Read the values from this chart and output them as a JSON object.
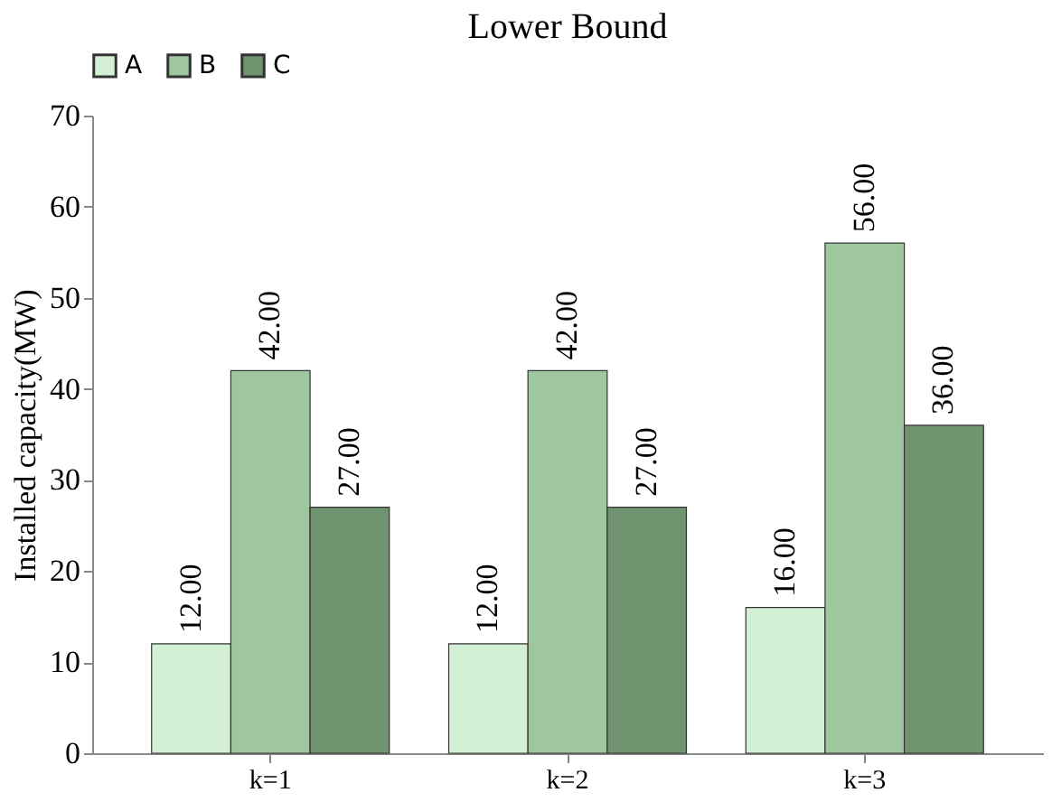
{
  "chart_data": {
    "type": "bar",
    "title": "Lower Bound",
    "ylabel": "Installed capacity(MW)",
    "categories": [
      "k=1",
      "k=2",
      "k=3"
    ],
    "series": [
      {
        "name": "A",
        "color": "#d4f0d4",
        "values": [
          12,
          12,
          16
        ],
        "value_labels": [
          "12.00",
          "12.00",
          "16.00"
        ]
      },
      {
        "name": "B",
        "color": "#9ec79e",
        "values": [
          42,
          42,
          56
        ],
        "value_labels": [
          "42.00",
          "42.00",
          "56.00"
        ]
      },
      {
        "name": "C",
        "color": "#6f946f",
        "values": [
          27,
          27,
          36
        ],
        "value_labels": [
          "27.00",
          "27.00",
          "36.00"
        ]
      }
    ],
    "ylim": [
      0,
      70
    ],
    "yticks": [
      0,
      10,
      20,
      30,
      40,
      50,
      60,
      70
    ],
    "grid": false,
    "legend": "top"
  }
}
